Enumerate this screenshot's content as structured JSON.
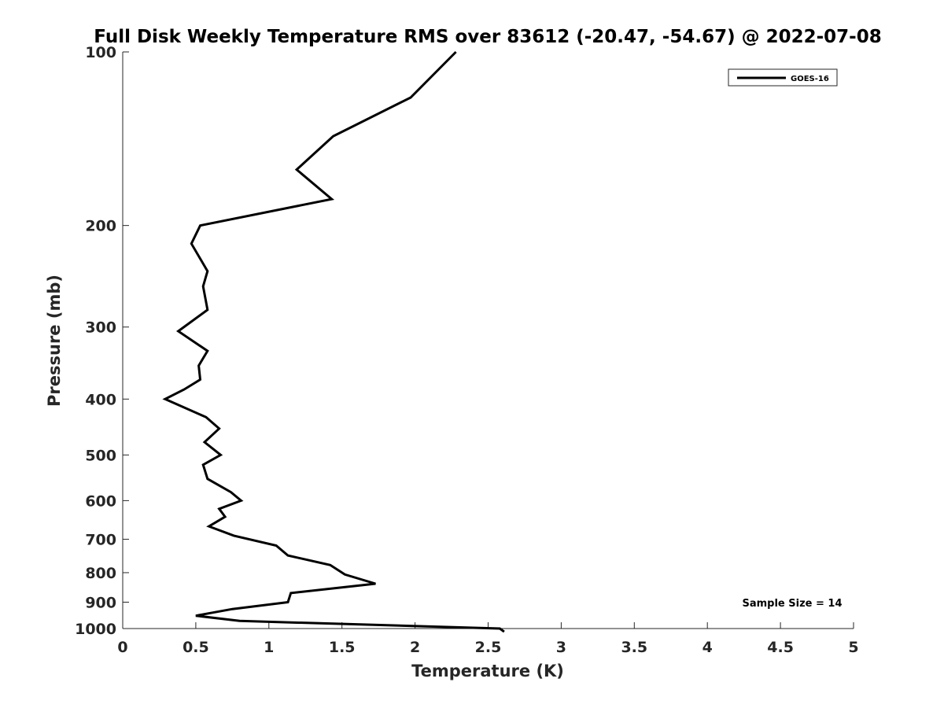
{
  "chart_data": {
    "type": "line",
    "title": "Full Disk Weekly Temperature RMS over 83612 (-20.47, -54.67) @ 2022-07-08",
    "xlabel": "Temperature (K)",
    "ylabel": "Pressure (mb)",
    "xlim": [
      0,
      5
    ],
    "ylim": [
      100,
      1000
    ],
    "y_scale": "log",
    "y_reversed": true,
    "x_ticks": [
      "0",
      "0.5",
      "1",
      "1.5",
      "2",
      "2.5",
      "3",
      "3.5",
      "4",
      "4.5",
      "5"
    ],
    "y_ticks": [
      "100",
      "200",
      "300",
      "400",
      "500",
      "600",
      "700",
      "800",
      "900",
      "1000"
    ],
    "grid": false,
    "legend_position": "top-right",
    "annotation": "Sample Size = 14",
    "series": [
      {
        "name": "GOES-16",
        "color": "#000000",
        "x": [
          2.28,
          1.97,
          1.44,
          1.19,
          1.43,
          0.53,
          0.47,
          0.58,
          0.55,
          0.58,
          0.38,
          0.58,
          0.52,
          0.53,
          0.42,
          0.29,
          0.57,
          0.66,
          0.56,
          0.67,
          0.55,
          0.58,
          0.74,
          0.81,
          0.66,
          0.7,
          0.59,
          0.76,
          1.05,
          1.13,
          1.42,
          1.52,
          1.73,
          1.15,
          1.13,
          0.75,
          0.5,
          0.8,
          2.58,
          2.61
        ],
        "y": [
          100,
          120,
          140,
          160,
          180,
          200,
          215,
          240,
          255,
          280,
          305,
          330,
          350,
          370,
          385,
          400,
          430,
          450,
          475,
          500,
          520,
          550,
          580,
          600,
          620,
          640,
          665,
          690,
          718,
          747,
          776,
          806,
          836,
          868,
          900,
          925,
          950,
          970,
          1000,
          1013
        ]
      }
    ]
  }
}
